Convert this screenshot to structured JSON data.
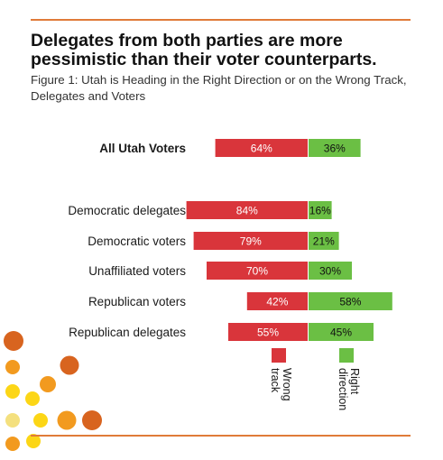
{
  "title": "Delegates from both parties are more pessimistic than their voter counterparts.",
  "subtitle": "Figure 1: Utah is Heading in the Right Direction or on the Wrong Track, Delegates and Voters",
  "colors": {
    "wrong_track": "#d9353b",
    "right_direction": "#6bbf44",
    "rule": "#e07b39"
  },
  "chart_data": {
    "type": "bar",
    "orientation": "horizontal-diverging",
    "categories": [
      "All Utah Voters",
      "Democratic delegates",
      "Democratic voters",
      "Unaffiliated voters",
      "Republican voters",
      "Republican delegates"
    ],
    "emphasized_category": "All Utah Voters",
    "series": [
      {
        "name": "Wrong track",
        "values": [
          64,
          84,
          79,
          70,
          42,
          55
        ],
        "labels": [
          "64%",
          "84%",
          "79%",
          "70%",
          "42%",
          "55%"
        ]
      },
      {
        "name": "Right direction",
        "values": [
          36,
          16,
          21,
          30,
          58,
          45
        ],
        "labels": [
          "36%",
          "16%",
          "21%",
          "30%",
          "58%",
          "45%"
        ]
      }
    ],
    "legend": {
      "placement": "bottom-center",
      "items": [
        "Wrong track",
        "Right direction"
      ]
    },
    "grid": false,
    "axes_shown": false
  }
}
